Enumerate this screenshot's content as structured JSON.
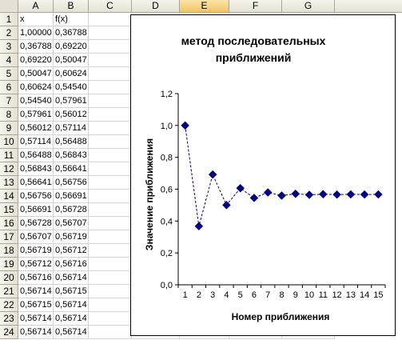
{
  "sheet": {
    "columns": [
      "A",
      "B",
      "C",
      "D",
      "E",
      "F",
      "G"
    ],
    "active_column": "E",
    "rows": [
      "1",
      "2",
      "3",
      "4",
      "5",
      "6",
      "7",
      "8",
      "9",
      "10",
      "11",
      "12",
      "13",
      "14",
      "15",
      "16",
      "17",
      "18",
      "19",
      "20",
      "21",
      "22",
      "23",
      "24"
    ],
    "header_x": "x",
    "header_fx": "f(x)",
    "x_values": [
      "1,00000",
      "0,36788",
      "0,69220",
      "0,50047",
      "0,60624",
      "0,54540",
      "0,57961",
      "0,56012",
      "0,57114",
      "0,56488",
      "0,56843",
      "0,56641",
      "0,56756",
      "0,56691",
      "0,56728",
      "0,56707",
      "0,56719",
      "0,56712",
      "0,56716",
      "0,56714",
      "0,56715",
      "0,56714",
      "0,56714"
    ],
    "fx_values": [
      "0,36788",
      "0,69220",
      "0,50047",
      "0,60624",
      "0,54540",
      "0,57961",
      "0,56012",
      "0,57114",
      "0,56488",
      "0,56843",
      "0,56641",
      "0,56756",
      "0,56691",
      "0,56728",
      "0,56707",
      "0,56719",
      "0,56712",
      "0,56716",
      "0,56714",
      "0,56715",
      "0,56714",
      "0,56714",
      "0,56714"
    ]
  },
  "chart_data": {
    "type": "line",
    "title_lines": [
      "метод последовательных",
      "приближений"
    ],
    "xlabel": "Номер приближения",
    "ylabel": "Значение приближения",
    "x": [
      1,
      2,
      3,
      4,
      5,
      6,
      7,
      8,
      9,
      10,
      11,
      12,
      13,
      14,
      15
    ],
    "x_tick_labels": [
      "1",
      "2",
      "3",
      "4",
      "5",
      "6",
      "7",
      "8",
      "9",
      "10",
      "11",
      "12",
      "13",
      "14",
      "15"
    ],
    "y_tick_labels": [
      "0,0",
      "0,2",
      "0,4",
      "0,6",
      "0,8",
      "1,0",
      "1,2"
    ],
    "y_ticks": [
      0,
      0.2,
      0.4,
      0.6,
      0.8,
      1.0,
      1.2
    ],
    "ylim": [
      0,
      1.2
    ],
    "series": [
      {
        "values": [
          1.0,
          0.36788,
          0.6922,
          0.50047,
          0.60624,
          0.5454,
          0.57961,
          0.56012,
          0.57114,
          0.56488,
          0.56843,
          0.56641,
          0.56756,
          0.56691,
          0.56728
        ]
      }
    ],
    "line_style": "dashed",
    "marker": "diamond",
    "color": "#000080",
    "grid": false,
    "legend": "none"
  }
}
